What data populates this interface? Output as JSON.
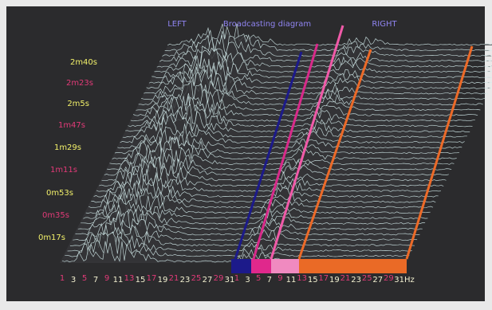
{
  "header": {
    "left": "LEFT",
    "title": "Broadcasting diagram",
    "right": "RIGHT"
  },
  "time_labels": [
    "2m40s",
    "2m23s",
    "2m5s",
    "1m47s",
    "1m29s",
    "1m11s",
    "0m53s",
    "0m35s",
    "0m17s"
  ],
  "freq_labels_left": [
    "1",
    "3",
    "5",
    "7",
    "9",
    "11",
    "13",
    "15",
    "17",
    "19",
    "21",
    "23",
    "25",
    "27",
    "29",
    "31"
  ],
  "freq_labels_right": [
    "1",
    "3",
    "5",
    "7",
    "9",
    "11",
    "13",
    "15",
    "17",
    "19",
    "21",
    "23",
    "25",
    "27",
    "29",
    "31Hz"
  ]
}
